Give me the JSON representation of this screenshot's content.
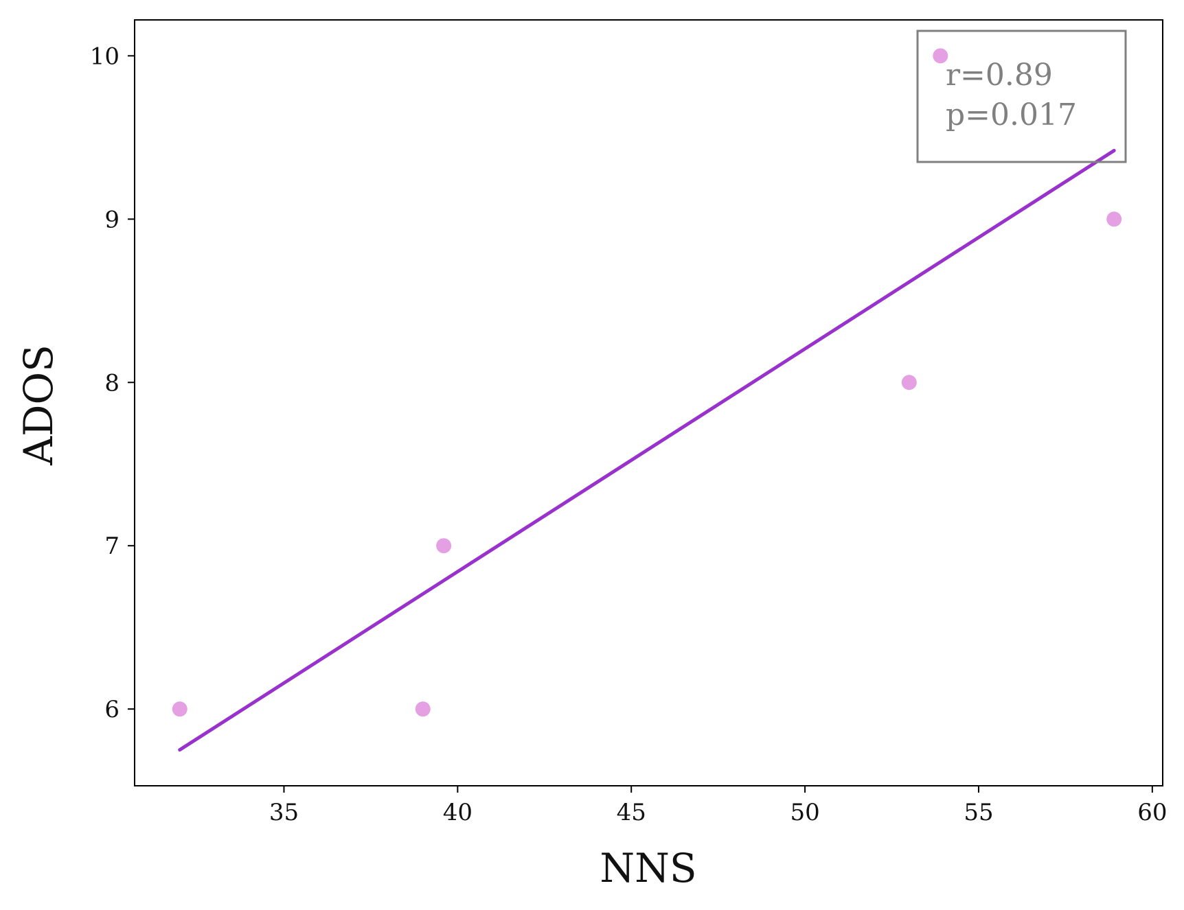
{
  "chart_data": {
    "type": "scatter",
    "title": "",
    "xlabel": "NNS",
    "ylabel": "ADOS",
    "xlim": [
      30.7,
      60.3
    ],
    "ylim": [
      5.53,
      10.22
    ],
    "xticks": [
      35,
      40,
      45,
      50,
      55,
      60
    ],
    "yticks": [
      6,
      7,
      8,
      9,
      10
    ],
    "grid": false,
    "series": [
      {
        "points": [
          {
            "x": 32.0,
            "y": 6
          },
          {
            "x": 39.0,
            "y": 6
          },
          {
            "x": 39.6,
            "y": 7
          },
          {
            "x": 53.0,
            "y": 8
          },
          {
            "x": 53.9,
            "y": 10
          },
          {
            "x": 58.9,
            "y": 9
          }
        ]
      }
    ],
    "trendline": {
      "x": [
        32.0,
        58.9
      ],
      "y": [
        5.75,
        9.42
      ]
    },
    "annotation": {
      "lines": [
        "r=0.89",
        "p=0.017"
      ],
      "placement": "top-right"
    },
    "colors": {
      "points": "#e39be0",
      "trendline": "#9932cc",
      "annotation": "#808080"
    }
  }
}
